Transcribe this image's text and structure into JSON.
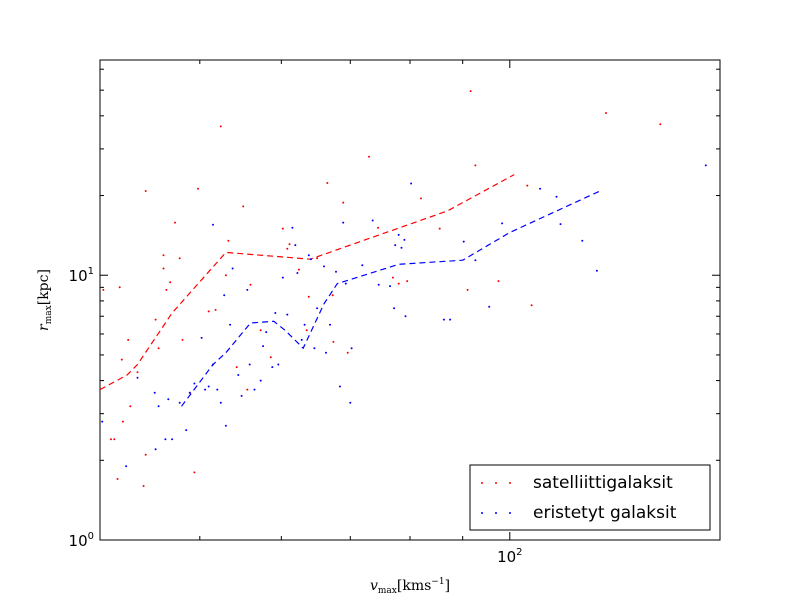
{
  "chart_data": {
    "type": "scatter",
    "xscale": "log",
    "yscale": "log",
    "xlim": [
      40,
      160
    ],
    "ylim": [
      1.0,
      65
    ],
    "xticks": [
      {
        "value": 100,
        "label": "10",
        "sup": "2"
      }
    ],
    "yticks": [
      {
        "value": 1,
        "label": "10",
        "sup": "0"
      },
      {
        "value": 10,
        "label": "10",
        "sup": "1"
      }
    ],
    "xlabel": {
      "main": "v",
      "sub": "max",
      "unit": "[kms",
      "unit_sup": "−1",
      "unit_end": "]"
    },
    "ylabel": {
      "main": "r",
      "sub": "max",
      "unit": "[kpc]"
    },
    "legend_position": "lower right",
    "series": [
      {
        "name": "satelliittigalaksit",
        "color": "#ff0000",
        "points": [
          [
            40.3,
            8.8
          ],
          [
            41.0,
            2.4
          ],
          [
            41.3,
            2.4
          ],
          [
            41.6,
            1.7
          ],
          [
            41.8,
            9.0
          ],
          [
            42.1,
            2.8
          ],
          [
            42.0,
            4.8
          ],
          [
            42.6,
            5.7
          ],
          [
            42.8,
            3.2
          ],
          [
            43.5,
            4.3
          ],
          [
            44.3,
            20.8
          ],
          [
            44.3,
            2.1
          ],
          [
            44.1,
            1.6
          ],
          [
            45.3,
            6.8
          ],
          [
            45.6,
            5.3
          ],
          [
            46.1,
            11.9
          ],
          [
            46.4,
            8.8
          ],
          [
            46.1,
            10.6
          ],
          [
            46.8,
            9.4
          ],
          [
            47.3,
            15.8
          ],
          [
            47.8,
            11.6
          ],
          [
            48.1,
            5.7
          ],
          [
            48.9,
            3.6
          ],
          [
            49.4,
            1.8
          ],
          [
            49.8,
            21.2
          ],
          [
            51.0,
            7.3
          ],
          [
            51.8,
            7.4
          ],
          [
            52.4,
            36.5
          ],
          [
            53.3,
            13.5
          ],
          [
            53.0,
            10.0
          ],
          [
            54.3,
            4.5
          ],
          [
            55.1,
            18.2
          ],
          [
            55.6,
            3.7
          ],
          [
            56.0,
            9.2
          ],
          [
            57.3,
            6.2
          ],
          [
            58.6,
            4.9
          ],
          [
            60.2,
            15.0
          ],
          [
            60.8,
            12.6
          ],
          [
            61.1,
            13.1
          ],
          [
            62.4,
            10.5
          ],
          [
            63.5,
            6.2
          ],
          [
            63.8,
            8.3
          ],
          [
            65.0,
            11.6
          ],
          [
            66.5,
            22.3
          ],
          [
            67.3,
            8.4
          ],
          [
            67.4,
            5.6
          ],
          [
            68.9,
            18.8
          ],
          [
            69.6,
            5.1
          ],
          [
            73.0,
            28.0
          ],
          [
            74.5,
            15.1
          ],
          [
            77.0,
            9.8
          ],
          [
            78.0,
            9.3
          ],
          [
            79.5,
            9.5
          ],
          [
            82.0,
            19.5
          ],
          [
            85.5,
            15.0
          ],
          [
            91.0,
            8.8
          ],
          [
            91.6,
            49.6
          ],
          [
            92.6,
            26.0
          ],
          [
            97.5,
            9.5
          ],
          [
            104.0,
            21.8
          ],
          [
            105.0,
            7.7
          ],
          [
            124.0,
            41.0
          ],
          [
            140.0,
            37.2
          ]
        ]
      },
      {
        "name": "eristetyt galaksit",
        "color": "#0000ff",
        "points": [
          [
            40.2,
            2.8
          ],
          [
            42.4,
            1.9
          ],
          [
            43.5,
            4.1
          ],
          [
            45.3,
            2.2
          ],
          [
            45.2,
            3.6
          ],
          [
            45.6,
            3.2
          ],
          [
            46.3,
            2.4
          ],
          [
            46.6,
            3.4
          ],
          [
            47.0,
            2.4
          ],
          [
            47.8,
            3.3
          ],
          [
            48.5,
            2.6
          ],
          [
            48.9,
            3.6
          ],
          [
            49.4,
            3.9
          ],
          [
            50.2,
            5.8
          ],
          [
            50.6,
            3.7
          ],
          [
            51.0,
            3.8
          ],
          [
            51.5,
            4.6
          ],
          [
            51.5,
            15.5
          ],
          [
            52.0,
            3.7
          ],
          [
            52.4,
            3.3
          ],
          [
            52.8,
            8.4
          ],
          [
            53.0,
            2.7
          ],
          [
            53.5,
            6.5
          ],
          [
            53.8,
            10.6
          ],
          [
            54.5,
            4.2
          ],
          [
            54.9,
            3.5
          ],
          [
            55.6,
            8.8
          ],
          [
            55.9,
            4.6
          ],
          [
            56.5,
            3.7
          ],
          [
            57.3,
            4.0
          ],
          [
            57.6,
            5.4
          ],
          [
            58.0,
            6.1
          ],
          [
            58.8,
            4.5
          ],
          [
            59.2,
            7.2
          ],
          [
            59.6,
            4.6
          ],
          [
            60.2,
            9.8
          ],
          [
            60.8,
            7.1
          ],
          [
            61.5,
            15.1
          ],
          [
            61.9,
            13.0
          ],
          [
            62.2,
            10.2
          ],
          [
            62.8,
            5.7
          ],
          [
            63.2,
            6.5
          ],
          [
            63.8,
            11.9
          ],
          [
            64.1,
            11.5
          ],
          [
            64.6,
            5.3
          ],
          [
            65.0,
            7.5
          ],
          [
            66.0,
            10.8
          ],
          [
            66.3,
            5.1
          ],
          [
            66.9,
            6.5
          ],
          [
            67.8,
            10.3
          ],
          [
            68.4,
            3.8
          ],
          [
            68.9,
            15.8
          ],
          [
            69.3,
            9.3
          ],
          [
            70.2,
            5.3
          ],
          [
            70.0,
            3.3
          ],
          [
            71.9,
            10.9
          ],
          [
            73.6,
            16.1
          ],
          [
            74.6,
            9.2
          ],
          [
            76.5,
            9.1
          ],
          [
            77.2,
            7.5
          ],
          [
            77.4,
            13.0
          ],
          [
            78.0,
            14.2
          ],
          [
            78.5,
            12.7
          ],
          [
            79.0,
            13.6
          ],
          [
            79.2,
            7.0
          ],
          [
            80.2,
            22.2
          ],
          [
            86.3,
            6.8
          ],
          [
            87.5,
            6.8
          ],
          [
            90.2,
            13.4
          ],
          [
            92.6,
            11.4
          ],
          [
            95.5,
            7.6
          ],
          [
            98.3,
            15.7
          ],
          [
            107.0,
            21.2
          ],
          [
            111.0,
            19.8
          ],
          [
            112.0,
            15.6
          ],
          [
            117.6,
            13.5
          ],
          [
            121.5,
            10.4
          ],
          [
            155.0,
            26.0
          ]
        ]
      }
    ],
    "trend_lines": [
      {
        "color": "#ff0000",
        "points": [
          [
            40,
            3.7
          ],
          [
            42.5,
            4.2
          ],
          [
            43.5,
            4.6
          ],
          [
            47,
            7.2
          ],
          [
            53,
            12.2
          ],
          [
            64,
            11.5
          ],
          [
            87,
            17.5
          ],
          [
            101,
            24.0
          ]
        ]
      },
      {
        "color": "#0000ff",
        "points": [
          [
            48,
            3.2
          ],
          [
            51.5,
            4.6
          ],
          [
            53,
            5.1
          ],
          [
            56,
            6.6
          ],
          [
            59,
            6.7
          ],
          [
            60.5,
            6.2
          ],
          [
            63,
            5.3
          ],
          [
            66,
            7.8
          ],
          [
            68,
            9.3
          ],
          [
            78,
            11.0
          ],
          [
            90,
            11.4
          ],
          [
            100,
            14.5
          ],
          [
            123,
            21.0
          ]
        ]
      }
    ]
  }
}
